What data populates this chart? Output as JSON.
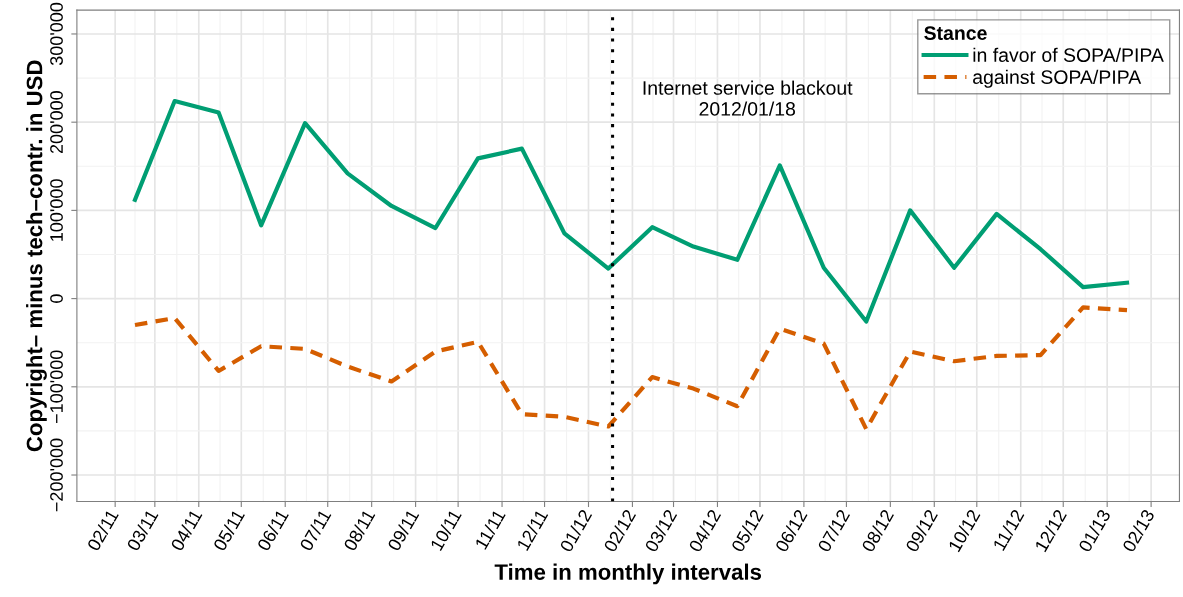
{
  "chart_data": {
    "type": "line",
    "xlabel": "Time in monthly intervals",
    "ylabel": "Copyright– minus tech–contr. in USD",
    "legend_title": "Stance",
    "legend": "top right",
    "grid": true,
    "x": [
      "2011-02-15",
      "2011-03-15",
      "2011-04-15",
      "2011-05-15",
      "2011-06-15",
      "2011-07-15",
      "2011-08-15",
      "2011-09-15",
      "2011-10-15",
      "2011-11-15",
      "2011-12-15",
      "2012-01-15",
      "2012-02-15",
      "2012-03-15",
      "2012-04-15",
      "2012-05-15",
      "2012-06-15",
      "2012-07-15",
      "2012-08-15",
      "2012-09-15",
      "2012-10-15",
      "2012-11-15",
      "2012-12-15",
      "2013-01-15"
    ],
    "series": [
      {
        "name": "in favor of SOPA/PIPA",
        "color": "#009e73",
        "line_style": "solid",
        "values": [
          112000,
          224000,
          211000,
          83000,
          199000,
          142000,
          105000,
          80000,
          159000,
          170000,
          74000,
          34000,
          81000,
          59000,
          44000,
          151000,
          35000,
          -26000,
          100000,
          35000,
          96000,
          56000,
          13000,
          18000
        ]
      },
      {
        "name": "against SOPA/PIPA",
        "color": "#d55e00",
        "line_style": "dashed",
        "values": [
          -30000,
          -22000,
          -82000,
          -54000,
          -57000,
          -77000,
          -94000,
          -60000,
          -49000,
          -131000,
          -134000,
          -145000,
          -89000,
          -102000,
          -122000,
          -34000,
          -51000,
          -148000,
          -60000,
          -71000,
          -65000,
          -64000,
          -10000,
          -13000
        ]
      }
    ],
    "xlim": [
      "2011-01-05",
      "2013-02-21"
    ],
    "xticks": [
      {
        "value": "2011-02-01",
        "label": "02/11"
      },
      {
        "value": "2011-03-01",
        "label": "03/11"
      },
      {
        "value": "2011-04-01",
        "label": "04/11"
      },
      {
        "value": "2011-05-01",
        "label": "05/11"
      },
      {
        "value": "2011-06-01",
        "label": "06/11"
      },
      {
        "value": "2011-07-01",
        "label": "07/11"
      },
      {
        "value": "2011-08-01",
        "label": "08/11"
      },
      {
        "value": "2011-09-01",
        "label": "09/11"
      },
      {
        "value": "2011-10-01",
        "label": "10/11"
      },
      {
        "value": "2011-11-01",
        "label": "11/11"
      },
      {
        "value": "2011-12-01",
        "label": "12/11"
      },
      {
        "value": "2012-01-01",
        "label": "01/12"
      },
      {
        "value": "2012-02-01",
        "label": "02/12"
      },
      {
        "value": "2012-03-01",
        "label": "03/12"
      },
      {
        "value": "2012-04-01",
        "label": "04/12"
      },
      {
        "value": "2012-05-01",
        "label": "05/12"
      },
      {
        "value": "2012-06-01",
        "label": "06/12"
      },
      {
        "value": "2012-07-01",
        "label": "07/12"
      },
      {
        "value": "2012-08-01",
        "label": "08/12"
      },
      {
        "value": "2012-09-01",
        "label": "09/12"
      },
      {
        "value": "2012-10-01",
        "label": "10/12"
      },
      {
        "value": "2012-11-01",
        "label": "11/12"
      },
      {
        "value": "2012-12-01",
        "label": "12/12"
      },
      {
        "value": "2013-01-01",
        "label": "01/13"
      },
      {
        "value": "2013-02-01",
        "label": "02/13"
      }
    ],
    "ylim": [
      -230000,
      327000
    ],
    "yticks": [
      {
        "value": -200000,
        "label": "−200'000"
      },
      {
        "value": -100000,
        "label": "−100'000"
      },
      {
        "value": 0,
        "label": "0"
      },
      {
        "value": 100000,
        "label": "100'000"
      },
      {
        "value": 200000,
        "label": "200'000"
      },
      {
        "value": 300000,
        "label": "300'000"
      }
    ],
    "ref_lines": [
      {
        "axis": "x",
        "value": "2012-01-18",
        "label": "Internet service blackout\n2012/01/18",
        "color": "#000000",
        "line_style": "dotted"
      }
    ]
  }
}
